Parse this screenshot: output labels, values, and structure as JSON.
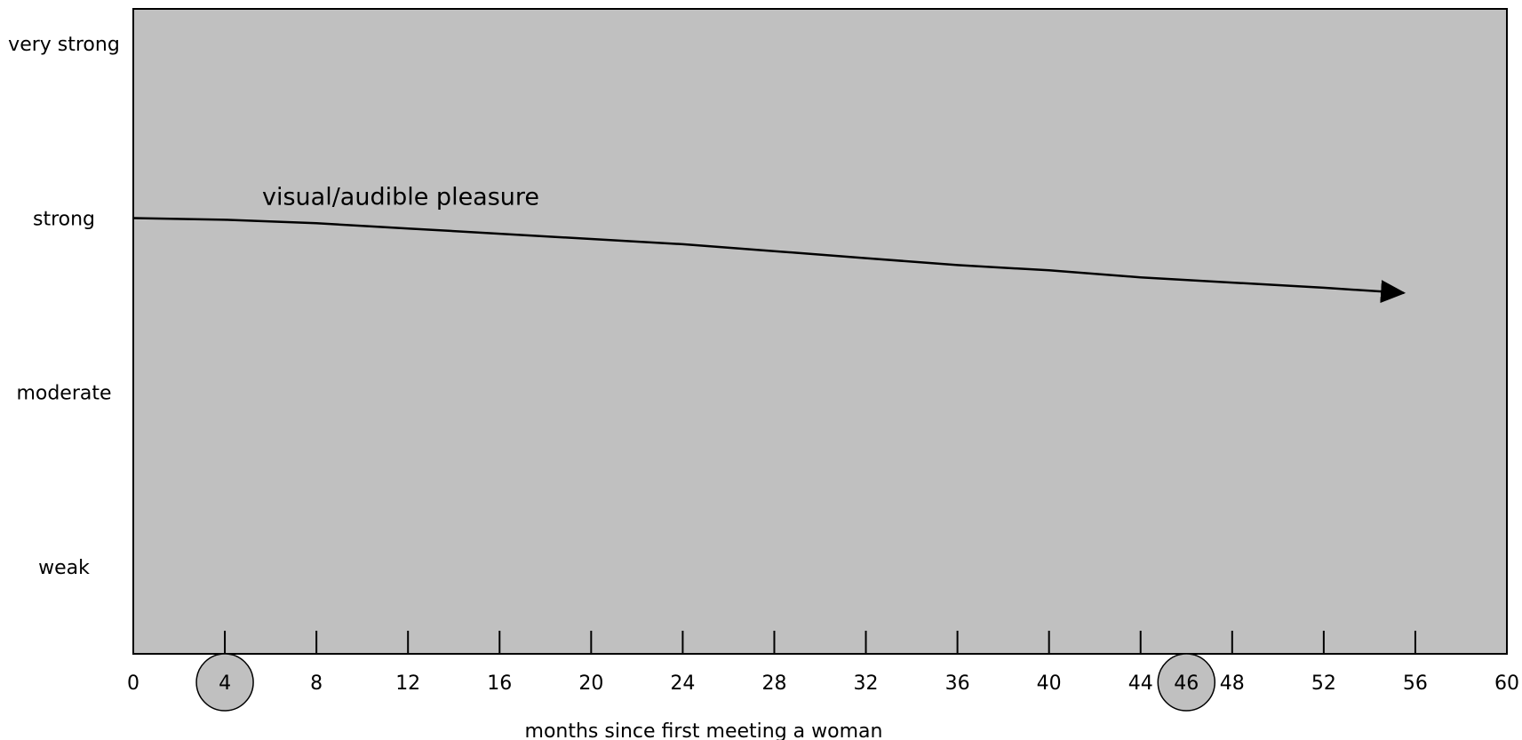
{
  "chart_data": {
    "type": "line",
    "title": "",
    "xlabel": "months since first meeting a woman",
    "ylabel": "",
    "xlim": [
      0,
      60
    ],
    "x_ticks": [
      0,
      4,
      8,
      12,
      16,
      20,
      24,
      28,
      32,
      36,
      40,
      44,
      46,
      48,
      52,
      56,
      60
    ],
    "x_tick_labels": [
      "0",
      "4",
      "8",
      "12",
      "16",
      "20",
      "24",
      "28",
      "32",
      "36",
      "40",
      "44",
      "46",
      "48",
      "52",
      "56",
      "60"
    ],
    "y_categories": [
      "weak",
      "moderate",
      "strong",
      "very strong"
    ],
    "ylim": [
      0.5,
      4.2
    ],
    "highlighted_x": [
      4,
      46
    ],
    "grid": false,
    "background_color": "#c0c0c0",
    "series": [
      {
        "name": "visual/audible pleasure",
        "color": "#000000",
        "arrow_end": true,
        "x": [
          0,
          4,
          8,
          12,
          16,
          20,
          24,
          28,
          32,
          36,
          40,
          44,
          48,
          52,
          55.5
        ],
        "y": [
          3.0,
          2.99,
          2.97,
          2.94,
          2.91,
          2.88,
          2.85,
          2.81,
          2.77,
          2.73,
          2.7,
          2.66,
          2.63,
          2.6,
          2.57
        ]
      }
    ]
  }
}
